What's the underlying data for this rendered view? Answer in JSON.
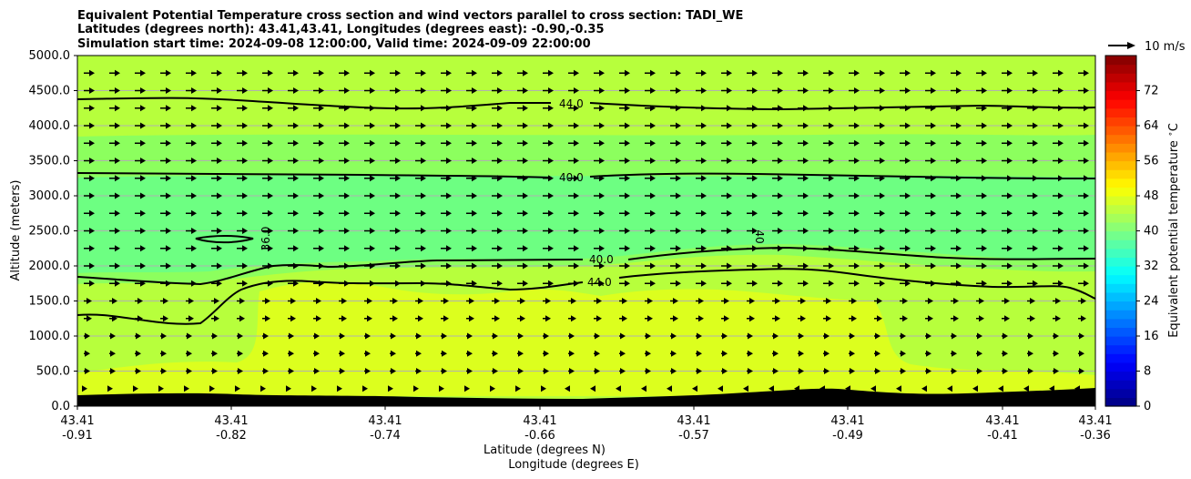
{
  "chart_data": {
    "type": "contourf",
    "title": [
      "Equivalent Potential Temperature cross section and wind vectors parallel to cross section: TADI_WE",
      "Latitudes (degrees north): 43.41,43.41, Longitudes (degrees east): -0.90,-0.35",
      "Simulation start time: 2024-09-08 12:00:00, Valid time: 2024-09-09 22:00:00"
    ],
    "ylabel": "Altitude (meters)",
    "xlabel_lat": "Latitude (degrees N)",
    "xlabel_lon": "Longitude (degrees E)",
    "ylim": [
      0,
      5000
    ],
    "yticks": [
      "0.0",
      "500.0",
      "1000.0",
      "1500.0",
      "2000.0",
      "2500.0",
      "3000.0",
      "3500.0",
      "4000.0",
      "4500.0",
      "5000.0"
    ],
    "xticks": [
      {
        "lat": "43.41",
        "lon": "-0.91"
      },
      {
        "lat": "43.41",
        "lon": "-0.82"
      },
      {
        "lat": "43.41",
        "lon": "-0.74"
      },
      {
        "lat": "43.41",
        "lon": "-0.66"
      },
      {
        "lat": "43.41",
        "lon": "-0.57"
      },
      {
        "lat": "43.41",
        "lon": "-0.49"
      },
      {
        "lat": "43.41",
        "lon": "-0.41"
      },
      {
        "lat": "43.41",
        "lon": "-0.36"
      }
    ],
    "colorbar": {
      "label": "Equivalent potential temperature $^\\circ$C",
      "range": [
        0,
        80
      ],
      "ticks": [
        "0",
        "8",
        "16",
        "24",
        "32",
        "40",
        "48",
        "56",
        "64",
        "72"
      ]
    },
    "quiver_key": "10 m/s",
    "contour_labels": [
      "44.0",
      "40.0",
      "36.0",
      "40",
      "40.0",
      "44.0"
    ],
    "colors": {
      "band_44": "#b7ff3c",
      "band_40": "#8cff5e",
      "band_36": "#6dff82",
      "band_48": "#dcff1e",
      "terrain": "#000000",
      "grid": "#b0b0b0"
    }
  }
}
